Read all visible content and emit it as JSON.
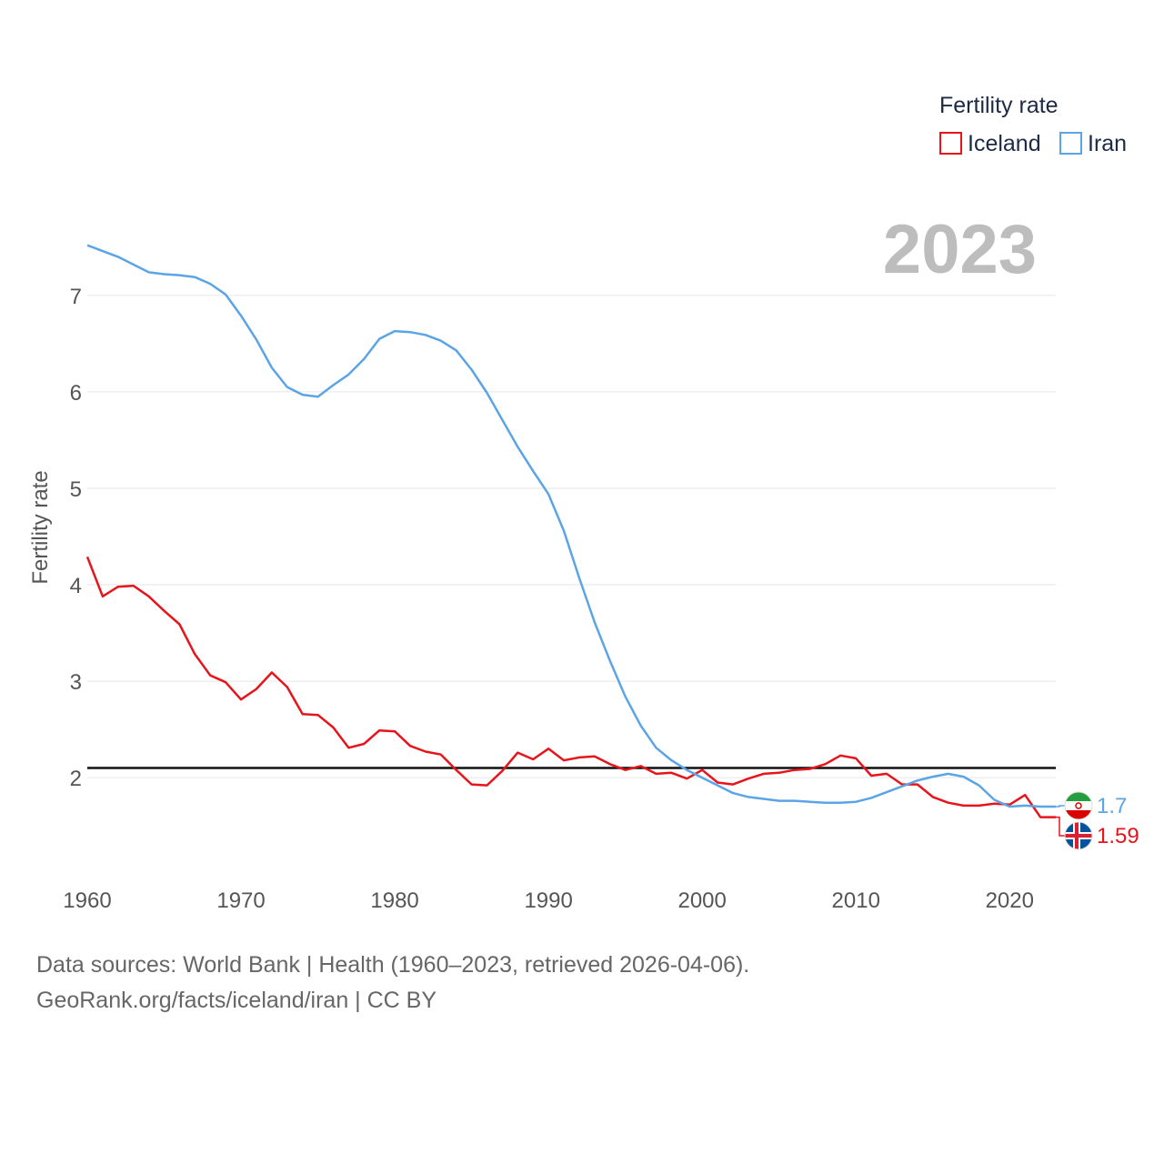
{
  "chart_data": {
    "type": "line",
    "year_label": "2023",
    "ylabel": "Fertility rate",
    "legend_title": "Fertility rate",
    "xlim": [
      1960,
      2023
    ],
    "ylim": [
      1.2,
      7.8
    ],
    "x_ticks": [
      1960,
      1970,
      1980,
      1990,
      2000,
      2010,
      2020
    ],
    "y_ticks": [
      2,
      3,
      4,
      5,
      6,
      7
    ],
    "reference_line": 2.1,
    "x": [
      1960,
      1961,
      1962,
      1963,
      1964,
      1965,
      1966,
      1967,
      1968,
      1969,
      1970,
      1971,
      1972,
      1973,
      1974,
      1975,
      1976,
      1977,
      1978,
      1979,
      1980,
      1981,
      1982,
      1983,
      1984,
      1985,
      1986,
      1987,
      1988,
      1989,
      1990,
      1991,
      1992,
      1993,
      1994,
      1995,
      1996,
      1997,
      1998,
      1999,
      2000,
      2001,
      2002,
      2003,
      2004,
      2005,
      2006,
      2007,
      2008,
      2009,
      2010,
      2011,
      2012,
      2013,
      2014,
      2015,
      2016,
      2017,
      2018,
      2019,
      2020,
      2021,
      2022,
      2023
    ],
    "series": [
      {
        "name": "Iceland",
        "color": "#e8141b",
        "end_label": "1.59",
        "flag": "iceland-flag",
        "values": [
          4.29,
          3.88,
          3.98,
          3.99,
          3.88,
          3.73,
          3.59,
          3.28,
          3.06,
          2.99,
          2.81,
          2.92,
          3.09,
          2.94,
          2.66,
          2.65,
          2.52,
          2.31,
          2.35,
          2.49,
          2.48,
          2.33,
          2.27,
          2.24,
          2.08,
          1.93,
          1.92,
          2.07,
          2.26,
          2.19,
          2.3,
          2.18,
          2.21,
          2.22,
          2.14,
          2.08,
          2.12,
          2.04,
          2.05,
          1.99,
          2.08,
          1.95,
          1.93,
          1.99,
          2.04,
          2.05,
          2.08,
          2.09,
          2.14,
          2.23,
          2.2,
          2.02,
          2.04,
          1.93,
          1.93,
          1.8,
          1.74,
          1.71,
          1.71,
          1.73,
          1.72,
          1.82,
          1.59,
          1.59
        ]
      },
      {
        "name": "Iran",
        "color": "#5ba4e5",
        "end_label": "1.7",
        "flag": "iran-flag",
        "values": [
          7.52,
          7.46,
          7.4,
          7.32,
          7.24,
          7.22,
          7.21,
          7.19,
          7.12,
          7.01,
          6.79,
          6.54,
          6.25,
          6.05,
          5.97,
          5.95,
          6.07,
          6.18,
          6.34,
          6.55,
          6.63,
          6.62,
          6.59,
          6.53,
          6.43,
          6.23,
          5.99,
          5.71,
          5.43,
          5.18,
          4.94,
          4.56,
          4.07,
          3.61,
          3.21,
          2.84,
          2.54,
          2.31,
          2.18,
          2.08,
          2.0,
          1.92,
          1.84,
          1.8,
          1.78,
          1.76,
          1.76,
          1.75,
          1.74,
          1.74,
          1.75,
          1.79,
          1.85,
          1.91,
          1.97,
          2.01,
          2.04,
          2.01,
          1.92,
          1.77,
          1.7,
          1.71,
          1.7,
          1.7
        ]
      }
    ]
  },
  "footer": {
    "line1": "Data sources: World Bank | Health (1960–2023, retrieved 2026-04-06).",
    "line2": "GeoRank.org/facts/iceland/iran | CC BY"
  }
}
